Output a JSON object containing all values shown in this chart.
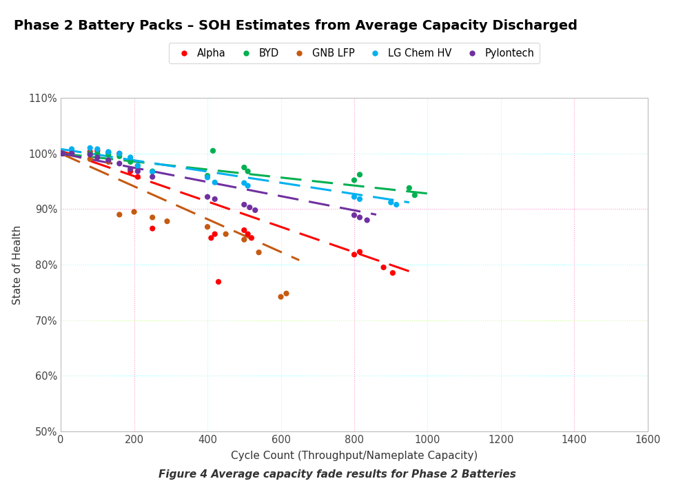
{
  "title": "Phase 2 Battery Packs – SOH Estimates from Average Capacity Discharged",
  "xlabel": "Cycle Count (Throughput/Nameplate Capacity)",
  "ylabel": "State of Health",
  "caption": "Figure 4 Average capacity fade results for Phase 2 Batteries",
  "xlim": [
    0,
    1600
  ],
  "ylim": [
    0.5,
    1.1
  ],
  "yticks": [
    0.5,
    0.6,
    0.7,
    0.8,
    0.9,
    1.0,
    1.1
  ],
  "xticks": [
    0,
    200,
    400,
    600,
    800,
    1000,
    1200,
    1400,
    1600
  ],
  "grid_h_colors": {
    "0.50": "#FF99CC",
    "0.60": "#99FFFF",
    "0.70": "#CCFF99",
    "0.80": "#99FFFF",
    "0.90": "#FF99CC",
    "1.00": "#99FFFF",
    "1.10": "#CCFF99"
  },
  "grid_v_colors": {
    "0": "#CCFF99",
    "200": "#FF99CC",
    "400": "#99FFFF",
    "600": "#CCFF99",
    "800": "#FF99CC",
    "1000": "#99FFFF",
    "1200": "#CCFF99",
    "1400": "#FF99CC",
    "1600": "#99FFFF"
  },
  "series": {
    "Alpha": {
      "color": "#FF0000",
      "scatter_x": [
        5,
        30,
        80,
        100,
        130,
        160,
        190,
        210,
        250,
        410,
        420,
        430,
        500,
        510,
        520,
        800,
        815,
        880,
        905
      ],
      "scatter_y": [
        1.0,
        1.0,
        1.003,
        1.005,
        1.002,
        1.0,
        0.968,
        0.958,
        0.865,
        0.848,
        0.855,
        0.769,
        0.862,
        0.855,
        0.848,
        0.818,
        0.823,
        0.795,
        0.785
      ],
      "trend_x": [
        0,
        950
      ],
      "trend_y": [
        1.005,
        0.788
      ]
    },
    "BYD": {
      "color": "#00B050",
      "scatter_x": [
        5,
        30,
        80,
        100,
        130,
        160,
        190,
        210,
        250,
        400,
        415,
        500,
        510,
        800,
        815,
        950,
        965
      ],
      "scatter_y": [
        1.0,
        1.0,
        1.0,
        1.0,
        0.998,
        0.995,
        0.985,
        0.978,
        0.968,
        0.96,
        1.005,
        0.975,
        0.968,
        0.952,
        0.962,
        0.938,
        0.925
      ],
      "trend_x": [
        0,
        1000
      ],
      "trend_y": [
        1.0,
        0.928
      ]
    },
    "GNB LFP": {
      "color": "#C55A11",
      "scatter_x": [
        5,
        30,
        80,
        130,
        160,
        200,
        250,
        290,
        400,
        450,
        500,
        540,
        600,
        615
      ],
      "scatter_y": [
        1.0,
        1.0,
        0.99,
        0.985,
        0.89,
        0.895,
        0.885,
        0.878,
        0.868,
        0.855,
        0.845,
        0.822,
        0.742,
        0.748
      ],
      "trend_x": [
        0,
        650
      ],
      "trend_y": [
        1.0,
        0.808
      ]
    },
    "LG Chem HV": {
      "color": "#00B0F0",
      "scatter_x": [
        5,
        30,
        80,
        100,
        130,
        160,
        190,
        210,
        250,
        400,
        420,
        500,
        510,
        800,
        815,
        900,
        915
      ],
      "scatter_y": [
        1.0,
        1.008,
        1.01,
        1.008,
        1.003,
        1.0,
        0.993,
        0.978,
        0.967,
        0.957,
        0.948,
        0.947,
        0.942,
        0.922,
        0.918,
        0.912,
        0.908
      ],
      "trend_x": [
        0,
        950
      ],
      "trend_y": [
        1.008,
        0.912
      ]
    },
    "Pylontech": {
      "color": "#7030A0",
      "scatter_x": [
        5,
        30,
        80,
        100,
        130,
        160,
        190,
        210,
        250,
        400,
        420,
        500,
        515,
        530,
        800,
        815,
        835
      ],
      "scatter_y": [
        1.0,
        1.0,
        0.998,
        0.993,
        0.988,
        0.982,
        0.972,
        0.968,
        0.958,
        0.922,
        0.918,
        0.908,
        0.903,
        0.898,
        0.889,
        0.885,
        0.88
      ],
      "trend_x": [
        0,
        860
      ],
      "trend_y": [
        1.0,
        0.89
      ]
    }
  },
  "background_color": "#FFFFFF"
}
